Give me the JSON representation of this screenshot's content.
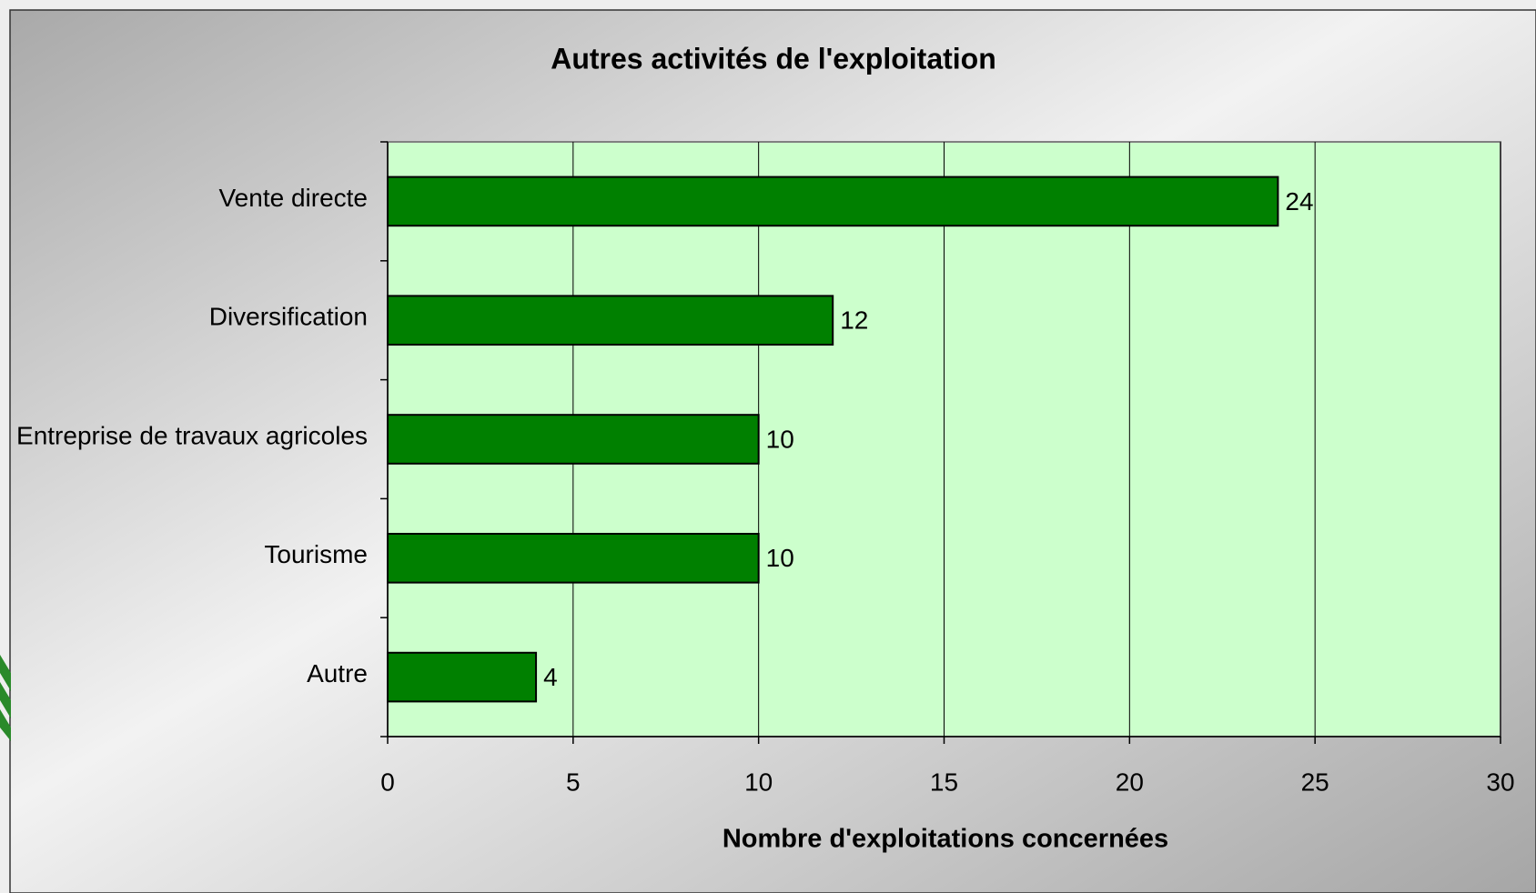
{
  "chart_data": {
    "type": "hbar",
    "title": "Autres activités de l'exploitation",
    "x_label": "Nombre d'exploitations concernées",
    "categories": [
      "Vente directe",
      "Diversification",
      "Entreprise de travaux agricoles",
      "Tourisme",
      "Autre"
    ],
    "values": [
      24,
      12,
      10,
      10,
      4
    ],
    "color": "#008000",
    "xlim": [
      0,
      30
    ],
    "xticks": [
      0,
      5,
      10,
      15,
      20,
      25,
      30
    ],
    "grid": true
  }
}
